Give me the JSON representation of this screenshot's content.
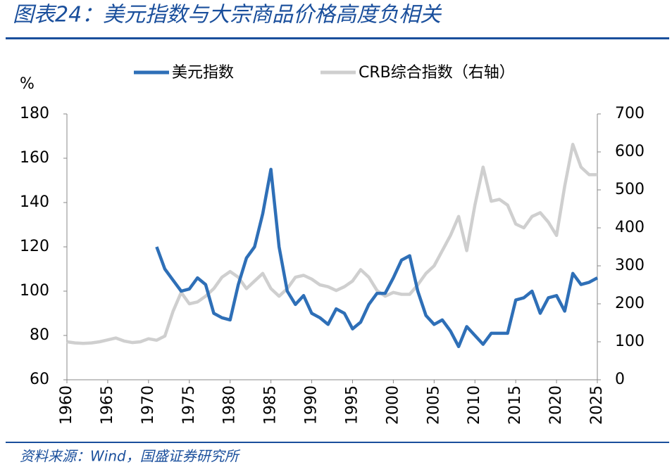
{
  "chart_data": {
    "type": "line",
    "title": "图表24：美元指数与大宗商品价格高度负相关",
    "y_label": "%",
    "source": "资料来源：Wind，国盛证券研究所",
    "x": [
      1960,
      1961,
      1962,
      1963,
      1964,
      1965,
      1966,
      1967,
      1968,
      1969,
      1970,
      1971,
      1972,
      1973,
      1974,
      1975,
      1976,
      1977,
      1978,
      1979,
      1980,
      1981,
      1982,
      1983,
      1984,
      1985,
      1986,
      1987,
      1988,
      1989,
      1990,
      1991,
      1992,
      1993,
      1994,
      1995,
      1996,
      1997,
      1998,
      1999,
      2000,
      2001,
      2002,
      2003,
      2004,
      2005,
      2006,
      2007,
      2008,
      2009,
      2010,
      2011,
      2012,
      2013,
      2014,
      2015,
      2016,
      2017,
      2018,
      2019,
      2020,
      2021,
      2022,
      2023,
      2024,
      2025
    ],
    "xlim": [
      1960,
      2025
    ],
    "xticks": [
      1960,
      1965,
      1970,
      1975,
      1980,
      1985,
      1990,
      1995,
      2000,
      2005,
      2010,
      2015,
      2020,
      2025
    ],
    "ylim": [
      60,
      180
    ],
    "yticks": [
      60,
      80,
      100,
      120,
      140,
      160,
      180
    ],
    "y2lim": [
      0,
      700
    ],
    "y2ticks": [
      0,
      100,
      200,
      300,
      400,
      500,
      600,
      700
    ],
    "series": [
      {
        "name": "美元指数",
        "color": "#2e6fb7",
        "axis": "y",
        "values": [
          null,
          null,
          null,
          null,
          null,
          null,
          null,
          null,
          null,
          null,
          null,
          120,
          110,
          105,
          100,
          101,
          106,
          103,
          90,
          88,
          87,
          103,
          115,
          120,
          135,
          155,
          120,
          100,
          94,
          98,
          90,
          88,
          85,
          92,
          90,
          83,
          86,
          94,
          99,
          99,
          106,
          114,
          116,
          100,
          89,
          85,
          87,
          82,
          75,
          84,
          80,
          76,
          81,
          81,
          81,
          96,
          97,
          100,
          90,
          97,
          98,
          91,
          108,
          103,
          104,
          106
        ]
      },
      {
        "name": "CRB综合指数（右轴）",
        "color": "#cfcfcf",
        "axis": "y2",
        "values": [
          100,
          97,
          96,
          97,
          100,
          105,
          110,
          102,
          98,
          100,
          108,
          104,
          115,
          180,
          230,
          200,
          205,
          220,
          240,
          270,
          285,
          270,
          240,
          260,
          280,
          240,
          220,
          240,
          270,
          275,
          265,
          250,
          245,
          235,
          245,
          260,
          290,
          270,
          235,
          220,
          230,
          225,
          225,
          250,
          280,
          300,
          340,
          380,
          430,
          340,
          460,
          560,
          470,
          475,
          460,
          410,
          400,
          430,
          440,
          415,
          380,
          510,
          620,
          560,
          540,
          540
        ]
      }
    ]
  }
}
